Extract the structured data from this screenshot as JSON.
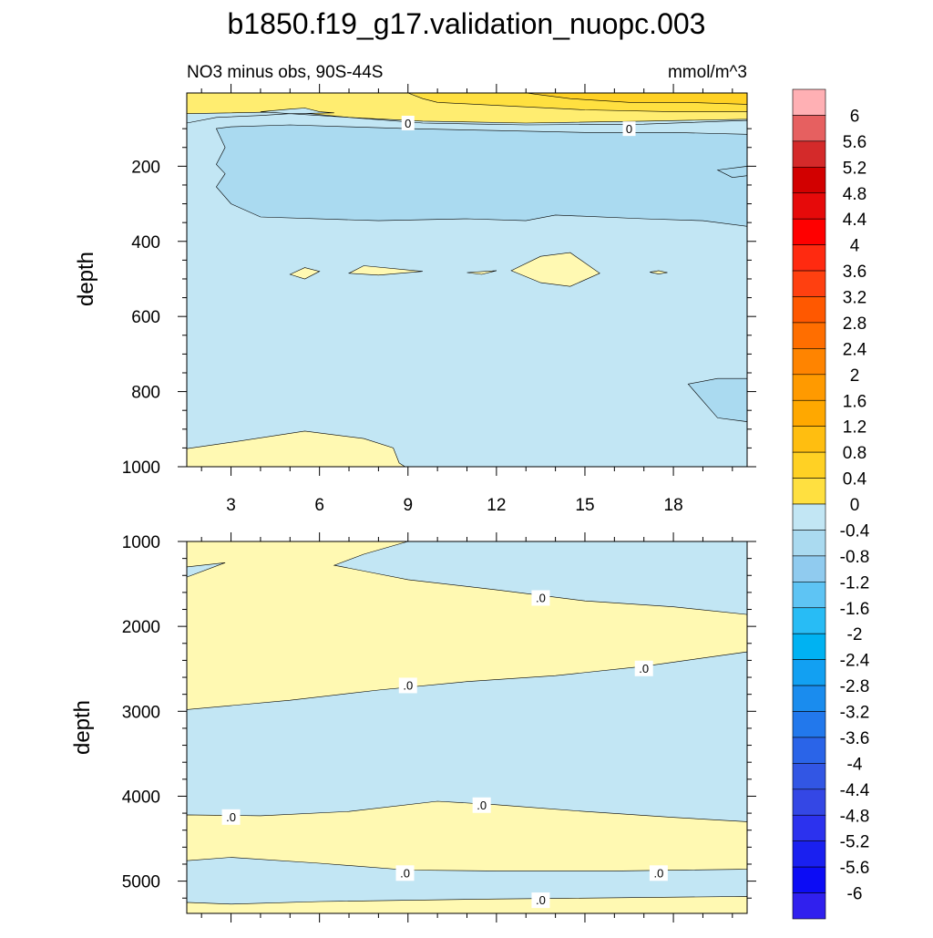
{
  "chart_data": {
    "type": "contour",
    "title": "b1850.f19_g17.validation_nuopc.003",
    "subtitle_left": "NO3 minus obs, 90S-44S",
    "units": "mmol/m^3",
    "colors": {
      "pos": [
        "#fff9b2",
        "#ffed70",
        "#ffe040",
        "#ffd124",
        "#ffbe10",
        "#ffa800",
        "#ff9a00",
        "#ff8400",
        "#ff6e00",
        "#ff5800",
        "#ff4010",
        "#ff2a10",
        "#ff0000",
        "#e60a0a",
        "#d20000",
        "#d42a2a",
        "#e66060",
        "#ffb0b4"
      ],
      "neg": [
        "#c2e6f4",
        "#aadaf0",
        "#90cbef",
        "#5ec4f4",
        "#28bcf5",
        "#00b2f2",
        "#12a0f2",
        "#1a8cee",
        "#2278ec",
        "#2a64e8",
        "#3256e4",
        "#3447e5",
        "#2c32ee",
        "#1a20f0",
        "#0c0cf5",
        "#3020ee",
        "#5a2cf0",
        "#8428ec"
      ],
      "line": "#000000"
    },
    "colorbar": {
      "ticks": [
        "6",
        "5.6",
        "5.2",
        "4.8",
        "4.4",
        "4",
        "3.6",
        "3.2",
        "2.8",
        "2.4",
        "2",
        "1.6",
        "1.2",
        "0.8",
        "0.4",
        "0",
        "-0.4",
        "-0.8",
        "-1.2",
        "-1.6",
        "-2",
        "-2.4",
        "-2.8",
        "-3.2",
        "-3.6",
        "-4",
        "-4.4",
        "-4.8",
        "-5.2",
        "-5.6",
        "-6"
      ]
    },
    "panels": [
      {
        "name": "upper",
        "ylabel": "depth",
        "x_ticks": [
          "3",
          "6",
          "9",
          "12",
          "15",
          "18"
        ],
        "x_tick_values": [
          3,
          6,
          9,
          12,
          15,
          18
        ],
        "xlim": [
          1.5,
          20.5
        ],
        "y_ticks": [
          "200",
          "400",
          "600",
          "800",
          "1000"
        ],
        "y_tick_values": [
          200,
          400,
          600,
          800,
          1000
        ],
        "ylim": [
          5,
          1000
        ],
        "contour_labels": [
          {
            "text": "0",
            "x": 9.0,
            "y": 85
          },
          {
            "text": "0",
            "x": 16.5,
            "y": 100
          }
        ],
        "regions": [
          {
            "level": "0.4",
            "points": [
              [
                1.5,
                5
              ],
              [
                20.5,
                5
              ],
              [
                20.5,
                75
              ],
              [
                17,
                80
              ],
              [
                13,
                85
              ],
              [
                9.5,
                80
              ],
              [
                7,
                70
              ],
              [
                5,
                55
              ],
              [
                1.5,
                60
              ]
            ]
          },
          {
            "level": "0.8",
            "points": [
              [
                9,
                5
              ],
              [
                20.5,
                5
              ],
              [
                20.5,
                55
              ],
              [
                18,
                55
              ],
              [
                15,
                50
              ],
              [
                12.5,
                40
              ],
              [
                10,
                30
              ],
              [
                9.5,
                20
              ]
            ]
          },
          {
            "level": "1.2",
            "points": [
              [
                13,
                5
              ],
              [
                20.5,
                5
              ],
              [
                20.5,
                35
              ],
              [
                18.5,
                30
              ],
              [
                16.5,
                30
              ],
              [
                14.5,
                20
              ],
              [
                13.5,
                10
              ]
            ]
          },
          {
            "level": "-0.4",
            "points": [
              [
                1.5,
                85
              ],
              [
                2.5,
                70
              ],
              [
                4,
                65
              ],
              [
                5,
                60
              ],
              [
                7,
                70
              ],
              [
                9.5,
                85
              ],
              [
                13,
                90
              ],
              [
                17,
                88
              ],
              [
                20.5,
                78
              ],
              [
                20.5,
                1000
              ],
              [
                1.5,
                1000
              ]
            ]
          },
          {
            "level": "-0.4",
            "points": [
              [
                4,
                55
              ],
              [
                5,
                48
              ],
              [
                5.5,
                45
              ],
              [
                6,
                55
              ],
              [
                6.5,
                58
              ],
              [
                5,
                60
              ]
            ]
          },
          {
            "level": "-0.8",
            "points": [
              [
                2.5,
                100
              ],
              [
                3,
                95
              ],
              [
                5,
                90
              ],
              [
                7,
                95
              ],
              [
                9,
                100
              ],
              [
                12,
                105
              ],
              [
                15,
                110
              ],
              [
                18,
                110
              ],
              [
                20.5,
                115
              ],
              [
                20.5,
                360
              ],
              [
                19,
                345
              ],
              [
                17,
                340
              ],
              [
                14,
                330
              ],
              [
                13,
                345
              ],
              [
                11,
                340
              ],
              [
                8,
                345
              ],
              [
                4,
                335
              ],
              [
                3,
                300
              ],
              [
                2.5,
                255
              ],
              [
                2.8,
                220
              ],
              [
                2.5,
                195
              ],
              [
                2.8,
                150
              ]
            ]
          },
          {
            "level": "-0.8",
            "points": [
              [
                19.5,
                210
              ],
              [
                20.5,
                200
              ],
              [
                20.5,
                225
              ],
              [
                20,
                230
              ]
            ]
          },
          {
            "level": "-0.8",
            "points": [
              [
                18.5,
                780
              ],
              [
                19.5,
                765
              ],
              [
                20.5,
                765
              ],
              [
                20.5,
                880
              ],
              [
                19.5,
                870
              ]
            ]
          },
          {
            "level": "0",
            "points": [
              [
                5,
                488
              ],
              [
                5.5,
                470
              ],
              [
                6,
                480
              ],
              [
                5.5,
                500
              ]
            ]
          },
          {
            "level": "0",
            "points": [
              [
                7,
                485
              ],
              [
                7.5,
                465
              ],
              [
                9.5,
                480
              ],
              [
                8,
                490
              ]
            ]
          },
          {
            "level": "0",
            "points": [
              [
                11,
                483
              ],
              [
                12,
                478
              ],
              [
                11.5,
                488
              ]
            ]
          },
          {
            "level": "0",
            "points": [
              [
                12.5,
                478
              ],
              [
                13.5,
                440
              ],
              [
                14.5,
                430
              ],
              [
                15.5,
                485
              ],
              [
                14.5,
                520
              ],
              [
                13.5,
                510
              ]
            ]
          },
          {
            "level": "0",
            "points": [
              [
                17.2,
                482
              ],
              [
                17.5,
                478
              ],
              [
                17.8,
                483
              ],
              [
                17.5,
                487
              ]
            ]
          },
          {
            "level": "0",
            "points": [
              [
                1.5,
                952
              ],
              [
                3,
                935
              ],
              [
                5.5,
                905
              ],
              [
                7.5,
                925
              ],
              [
                8.5,
                950
              ],
              [
                8.7,
                990
              ],
              [
                8.9,
                1000
              ],
              [
                1.5,
                1000
              ]
            ]
          }
        ]
      },
      {
        "name": "lower",
        "ylabel": "depth",
        "x_ticks": [],
        "x_tick_values": [
          3,
          6,
          9,
          12,
          15,
          18
        ],
        "xlim": [
          1.5,
          20.5
        ],
        "y_ticks": [
          "1000",
          "2000",
          "3000",
          "4000",
          "5000"
        ],
        "y_tick_values": [
          1000,
          2000,
          3000,
          4000,
          5000
        ],
        "ylim": [
          1000,
          5380
        ],
        "contour_labels": [
          {
            "text": ".0",
            "x": 13.5,
            "y": 1660
          },
          {
            "text": ".0",
            "x": 9.0,
            "y": 2690
          },
          {
            "text": ".0",
            "x": 17.0,
            "y": 2490
          },
          {
            "text": ".0",
            "x": 3.0,
            "y": 4240
          },
          {
            "text": ".0",
            "x": 11.5,
            "y": 4100
          },
          {
            "text": ".0",
            "x": 8.9,
            "y": 4900
          },
          {
            "text": ".0",
            "x": 17.5,
            "y": 4900
          },
          {
            "text": ".0",
            "x": 13.5,
            "y": 5220
          }
        ]
      }
    ]
  }
}
